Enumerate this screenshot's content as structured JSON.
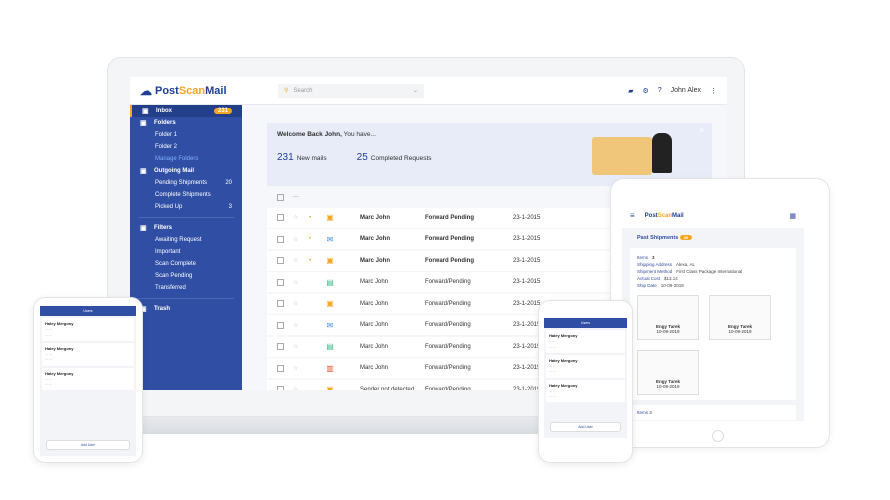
{
  "app": {
    "logo_a": "Post",
    "logo_b": "Scan",
    "logo_c": "Mail"
  },
  "header": {
    "search_placeholder": "Search",
    "user": "John Alex"
  },
  "sidebar": {
    "items": [
      {
        "label": "Inbox",
        "badge": "231",
        "icon": "inbox-icon",
        "type": "h",
        "active": true
      },
      {
        "label": "Folders",
        "icon": "folder-icon",
        "type": "h"
      },
      {
        "label": "Folder 1",
        "type": "sub"
      },
      {
        "label": "Folder 2",
        "type": "sub"
      },
      {
        "label": "Manage Folders",
        "type": "sub",
        "link": true
      },
      {
        "label": "Outgoing Mail",
        "icon": "outbox-icon",
        "type": "h"
      },
      {
        "label": "Pending Shipments",
        "count": "20",
        "type": "sub"
      },
      {
        "label": "Complete Shipments",
        "type": "sub"
      },
      {
        "label": "Picked Up",
        "count": "3",
        "type": "sub"
      },
      {
        "divider": true
      },
      {
        "label": "Filters",
        "icon": "filter-icon",
        "type": "h"
      },
      {
        "label": "Awaiting Request",
        "type": "sub"
      },
      {
        "label": "Important",
        "type": "sub"
      },
      {
        "label": "Scan Complete",
        "type": "sub"
      },
      {
        "label": "Scan Pending",
        "type": "sub"
      },
      {
        "label": "Transferred",
        "type": "sub"
      },
      {
        "divider": true
      },
      {
        "label": "Trash",
        "icon": "trash-icon",
        "type": "h"
      }
    ]
  },
  "welcome": {
    "greeting": "Welcome Back John,",
    "suffix": " You have...",
    "new_count": "231",
    "new_label": "New mails",
    "done_count": "25",
    "done_label": "Completed Requests"
  },
  "mail_rows": [
    {
      "sender": "Marc John",
      "status": "Forward Pending",
      "date": "23-1-2015",
      "icon": "package-icon",
      "unread": true
    },
    {
      "sender": "Marc John",
      "status": "Forward Pending",
      "date": "23-1-2015",
      "icon": "envelope-icon",
      "unread": true
    },
    {
      "sender": "Marc John",
      "status": "Forward Pending",
      "date": "23-1-2015",
      "icon": "package-icon",
      "unread": true
    },
    {
      "sender": "Marc John",
      "status": "Forward/Pending",
      "date": "23-1-2015",
      "icon": "scan-icon",
      "unread": false
    },
    {
      "sender": "Marc John",
      "status": "Forward/Pending",
      "date": "23-1-2015",
      "icon": "package-icon",
      "unread": false
    },
    {
      "sender": "Marc John",
      "status": "Forward/Pending",
      "date": "23-1-2015",
      "icon": "envelope-icon",
      "unread": false
    },
    {
      "sender": "Marc John",
      "status": "Forward/Pending",
      "date": "23-1-2015",
      "icon": "scan-icon",
      "unread": false
    },
    {
      "sender": "Marc John",
      "status": "Forward/Pending",
      "date": "23-1-2015",
      "icon": "box-icon",
      "unread": false
    },
    {
      "sender": "Sender not detected",
      "status": "Forward/Pending",
      "date": "23-1-2015",
      "icon": "package-icon",
      "unread": false
    }
  ],
  "tablet": {
    "title": "Past Shipments",
    "badge": "20",
    "item_label": "Items",
    "item_count": "3",
    "fields": [
      {
        "k": "Shipping Address",
        "v": "Alexa, AL"
      },
      {
        "k": "Shipment Method",
        "v": "First Class Package International"
      },
      {
        "k": "Actual Cost",
        "v": "$13.14"
      },
      {
        "k": "Ship Date",
        "v": "10-09-2019"
      }
    ],
    "thumbs": [
      {
        "name": "Engy Tarek",
        "date": "10-09-2019"
      },
      {
        "name": "Engy Tarek",
        "date": "10-09-2019"
      },
      {
        "name": "Engy Tarek",
        "date": "10-09-2019"
      }
    ],
    "item2_label": "Items",
    "item2_count": "3"
  },
  "phone": {
    "title": "Users",
    "users": [
      {
        "name": "Haley Mergony"
      },
      {
        "name": "Haley Mergony"
      },
      {
        "name": "Haley Mergony"
      }
    ],
    "button": "Add User"
  },
  "colors": {
    "primary": "#2f4ea4",
    "accent": "#f5a623"
  }
}
